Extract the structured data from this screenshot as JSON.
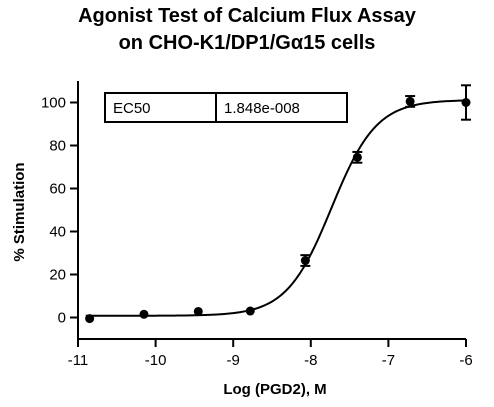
{
  "chart_data": {
    "type": "scatter",
    "title": [
      "Agonist Test of Calcium Flux Assay",
      "on CHO-K1/DP1/Gα15 cells"
    ],
    "xlabel": "Log (PGD2), M",
    "ylabel": "% Stimulation",
    "xlim": [
      -11,
      -6
    ],
    "ylim": [
      -10,
      110
    ],
    "x_ticks": [
      -11,
      -10,
      -9,
      -8,
      -7,
      -6
    ],
    "y_ticks": [
      0,
      20,
      40,
      60,
      80,
      100
    ],
    "x_tick_labels": [
      "-11",
      "-10",
      "-9",
      "-8",
      "-7",
      "-6"
    ],
    "y_tick_labels": [
      "0",
      "20",
      "40",
      "60",
      "80",
      "100"
    ],
    "grid": false,
    "series": [
      {
        "points": [
          {
            "x": -10.85,
            "y": -0.5,
            "err": 0
          },
          {
            "x": -10.15,
            "y": 1.5,
            "err": 0
          },
          {
            "x": -9.45,
            "y": 2.8,
            "err": 0
          },
          {
            "x": -8.78,
            "y": 3.0,
            "err": 0
          },
          {
            "x": -8.07,
            "y": 26.5,
            "err": 2.5
          },
          {
            "x": -7.4,
            "y": 74.5,
            "err": 2.5
          },
          {
            "x": -6.72,
            "y": 100.5,
            "err": 2.5
          },
          {
            "x": -6.0,
            "y": 100.0,
            "err": 8.0
          }
        ],
        "fit": {
          "bottom": 0.8,
          "top": 101.2,
          "log_ec50": -7.733,
          "hill": 1.5
        }
      }
    ],
    "legend_table": {
      "label": "EC50",
      "value": "1.848e-008"
    }
  }
}
